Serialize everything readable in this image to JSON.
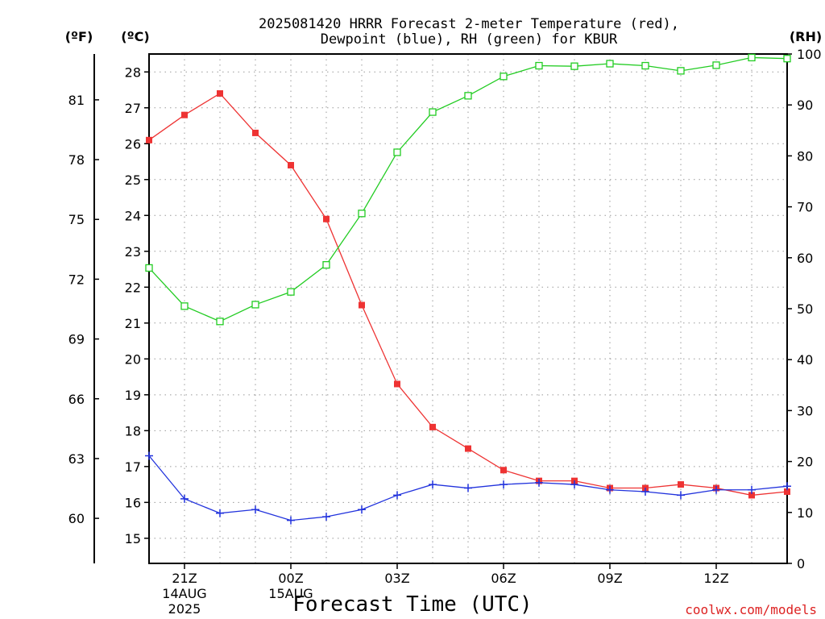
{
  "chart_data": {
    "type": "line",
    "title": "2025081420 HRRR Forecast 2-meter Temperature (red),",
    "subtitle": "Dewpoint (blue), RH (green) for KBUR",
    "xlabel": "Forecast Time (UTC)",
    "credit": "coolwx.com/models",
    "units": {
      "left_outer": "(ºF)",
      "left_inner": "(ºC)",
      "right": "(RH)"
    },
    "x": [
      20,
      21,
      22,
      23,
      24,
      25,
      26,
      27,
      28,
      29,
      30,
      31,
      32,
      33,
      34,
      35,
      36,
      37,
      38
    ],
    "x_tick_positions": [
      21,
      24,
      27,
      30,
      33,
      36
    ],
    "x_tick_labels": [
      {
        "time": "21Z",
        "date": "14AUG",
        "year": "2025"
      },
      {
        "time": "00Z",
        "date": "15AUG",
        "year": ""
      },
      {
        "time": "03Z",
        "date": "",
        "year": ""
      },
      {
        "time": "06Z",
        "date": "",
        "year": ""
      },
      {
        "time": "09Z",
        "date": "",
        "year": ""
      },
      {
        "time": "12Z",
        "date": "",
        "year": ""
      }
    ],
    "xlim": [
      20,
      38
    ],
    "y_celsius": {
      "ticks": [
        15,
        16,
        17,
        18,
        19,
        20,
        21,
        22,
        23,
        24,
        25,
        26,
        27,
        28
      ],
      "range": [
        14.3,
        28.5
      ]
    },
    "y_fahrenheit": {
      "ticks": [
        60,
        63,
        66,
        69,
        72,
        75,
        78,
        81
      ]
    },
    "y_rh": {
      "ticks": [
        0,
        10,
        20,
        30,
        40,
        50,
        60,
        70,
        80,
        90,
        100
      ],
      "range": [
        0,
        100
      ]
    },
    "grid": true,
    "series": [
      {
        "role": "temperature",
        "axis": "celsius",
        "color": "#ee3333",
        "marker": "filled-square",
        "values": [
          26.1,
          26.8,
          27.4,
          26.3,
          25.4,
          23.9,
          21.5,
          19.3,
          18.1,
          17.5,
          16.9,
          16.6,
          16.6,
          16.4,
          16.4,
          16.5,
          16.4,
          16.2,
          16.3
        ]
      },
      {
        "role": "dewpoint",
        "axis": "celsius",
        "color": "#2233dd",
        "marker": "plus",
        "values": [
          17.3,
          16.1,
          15.7,
          15.8,
          15.5,
          15.6,
          15.8,
          16.2,
          16.5,
          16.4,
          16.5,
          16.55,
          16.5,
          16.35,
          16.3,
          16.2,
          16.35,
          16.35,
          16.45
        ]
      },
      {
        "role": "rh",
        "axis": "rh",
        "color": "#22cc22",
        "marker": "open-square",
        "values": [
          58,
          50.5,
          47.5,
          50.8,
          53.3,
          58.6,
          68.7,
          80.7,
          88.6,
          91.8,
          95.6,
          97.7,
          97.6,
          98.1,
          97.7,
          96.7,
          97.8,
          99.3,
          99.1
        ]
      }
    ]
  }
}
